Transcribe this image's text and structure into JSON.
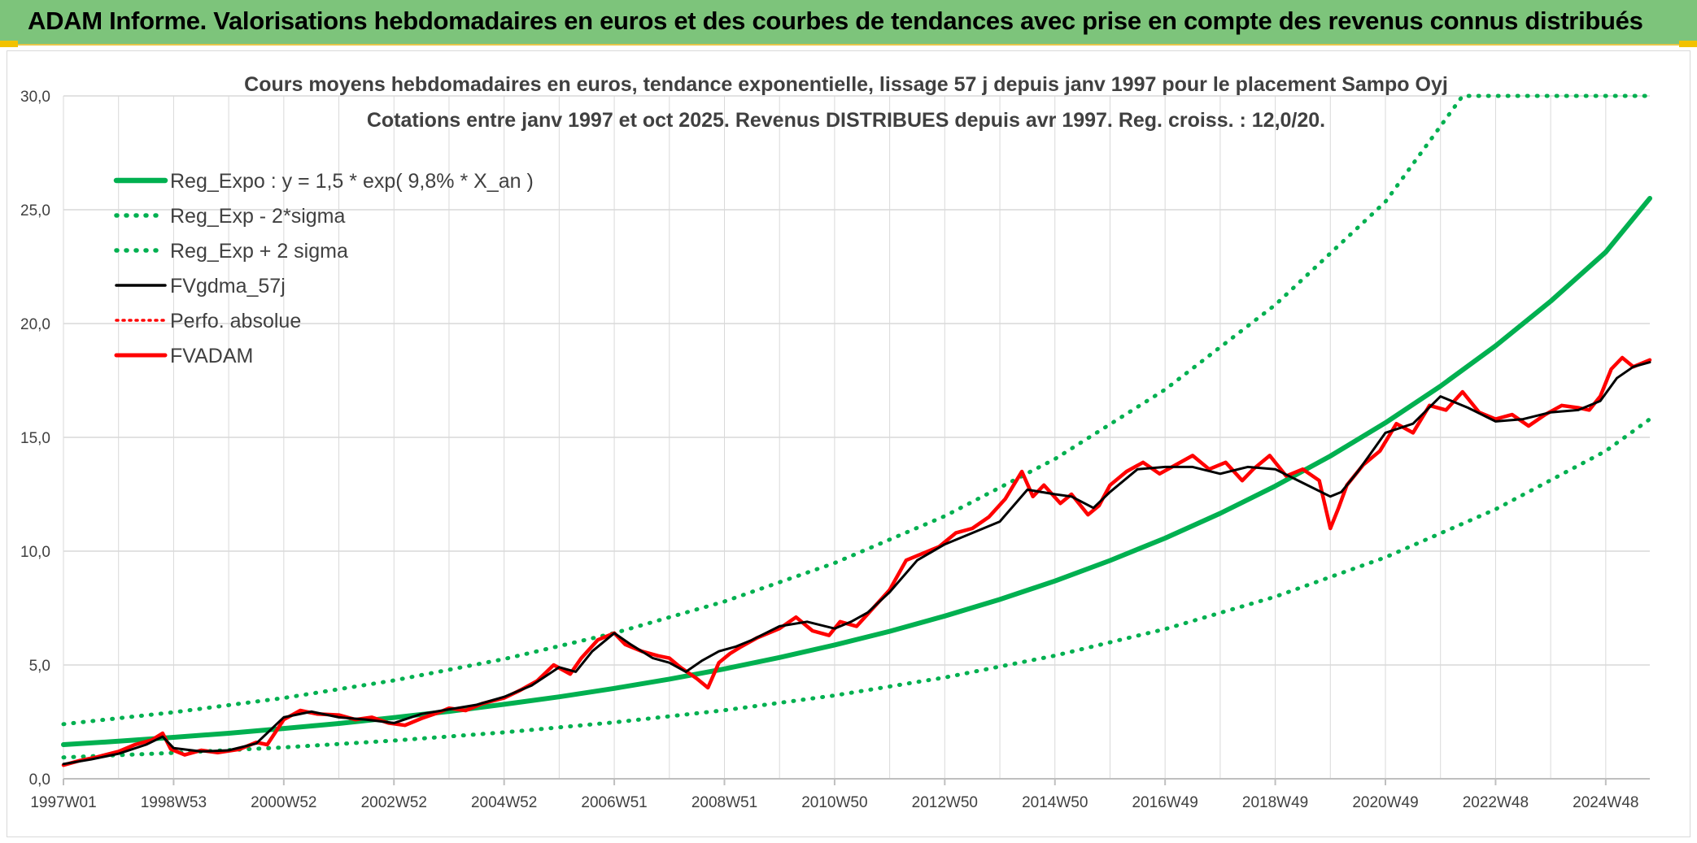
{
  "banner": {
    "title": "ADAM Informe. Valorisations hebdomadaires en euros et des courbes de tendances avec prise en compte des revenus connus distribués"
  },
  "colors": {
    "banner_bg": "#7dc47b",
    "trend_green": "#00b050",
    "price_red": "#ff0000",
    "smooth_black": "#000000",
    "grid": "#d9d9d9"
  },
  "chart_data": {
    "type": "line",
    "title_lines": [
      "Cours moyens hebdomadaires en euros, tendance exponentielle, lissage 57 j depuis janv 1997 pour le placement Sampo Oyj",
      "Cotations entre janv 1997 et oct 2025. Revenus DISTRIBUES depuis avr 1997. Reg. croiss. : 12,0/20."
    ],
    "xlabel": "",
    "ylabel": "",
    "ylim": [
      0,
      30
    ],
    "xlim": [
      1997.0,
      2025.8
    ],
    "y_ticks": [
      "0,0",
      "5,0",
      "10,0",
      "15,0",
      "20,0",
      "25,0",
      "30,0"
    ],
    "y_tick_values": [
      0,
      5,
      10,
      15,
      20,
      25,
      30
    ],
    "x_tick_labels": [
      "1997W01",
      "1998W53",
      "2000W52",
      "2002W52",
      "2004W52",
      "2006W51",
      "2008W51",
      "2010W50",
      "2012W50",
      "2014W50",
      "2016W49",
      "2018W49",
      "2020W49",
      "2022W48",
      "2024W48"
    ],
    "x_tick_values": [
      1997.0,
      1999.0,
      2001.0,
      2003.0,
      2005.0,
      2007.0,
      2009.0,
      2011.0,
      2013.0,
      2015.0,
      2017.0,
      2019.0,
      2021.0,
      2023.0,
      2025.0
    ],
    "grid": true,
    "legend_position": "top-left",
    "series": [
      {
        "name": "Reg_Expo : y = 1,5 * exp( 9,8% *  X_an )",
        "style": "solid-green-thick",
        "x": [
          1997.0,
          1998.0,
          1999.0,
          2000.0,
          2001.0,
          2002.0,
          2003.0,
          2004.0,
          2005.0,
          2006.0,
          2007.0,
          2008.0,
          2009.0,
          2010.0,
          2011.0,
          2012.0,
          2013.0,
          2014.0,
          2015.0,
          2016.0,
          2017.0,
          2018.0,
          2019.0,
          2020.0,
          2021.0,
          2022.0,
          2023.0,
          2024.0,
          2025.0,
          2025.8
        ],
        "values": [
          1.5,
          1.65,
          1.82,
          2.0,
          2.21,
          2.43,
          2.69,
          2.96,
          3.27,
          3.6,
          3.97,
          4.38,
          4.83,
          5.33,
          5.88,
          6.48,
          7.15,
          7.88,
          8.69,
          9.59,
          10.57,
          11.66,
          12.86,
          14.18,
          15.64,
          17.25,
          19.02,
          20.98,
          23.14,
          25.5
        ]
      },
      {
        "name": "Reg_Exp - 2*sigma",
        "style": "dotted-green",
        "x": [
          1997.0,
          1999.0,
          2001.0,
          2003.0,
          2005.0,
          2007.0,
          2009.0,
          2011.0,
          2013.0,
          2015.0,
          2017.0,
          2019.0,
          2021.0,
          2023.0,
          2025.0,
          2025.8
        ],
        "values": [
          0.94,
          1.14,
          1.38,
          1.68,
          2.04,
          2.48,
          3.01,
          3.66,
          4.45,
          5.41,
          6.58,
          8.0,
          9.73,
          11.84,
          14.4,
          15.8
        ]
      },
      {
        "name": "Reg_Exp + 2 sigma",
        "style": "dotted-green",
        "x": [
          1997.0,
          1999.0,
          2001.0,
          2003.0,
          2005.0,
          2007.0,
          2009.0,
          2011.0,
          2013.0,
          2015.0,
          2017.0,
          2019.0,
          2021.0,
          2022.4,
          2023.0,
          2025.8
        ],
        "values": [
          2.4,
          2.92,
          3.55,
          4.32,
          5.26,
          6.4,
          7.79,
          9.48,
          11.54,
          14.05,
          17.1,
          20.82,
          25.35,
          30.0,
          30.0,
          30.0
        ]
      },
      {
        "name": "FVgdma_57j",
        "style": "solid-black",
        "x": [
          1997.0,
          1997.5,
          1998.0,
          1998.5,
          1998.8,
          1999.0,
          1999.5,
          2000.0,
          2000.5,
          2001.0,
          2001.5,
          2002.0,
          2002.5,
          2003.0,
          2003.5,
          2004.0,
          2004.5,
          2005.0,
          2005.5,
          2006.0,
          2006.3,
          2006.6,
          2007.0,
          2007.3,
          2007.7,
          2008.0,
          2008.3,
          2008.6,
          2008.9,
          2009.2,
          2009.5,
          2010.0,
          2010.5,
          2011.0,
          2011.3,
          2011.6,
          2012.0,
          2012.5,
          2013.0,
          2013.5,
          2014.0,
          2014.5,
          2015.0,
          2015.3,
          2015.7,
          2016.0,
          2016.5,
          2017.0,
          2017.5,
          2018.0,
          2018.5,
          2019.0,
          2019.5,
          2020.0,
          2020.2,
          2020.5,
          2021.0,
          2021.5,
          2022.0,
          2022.5,
          2023.0,
          2023.5,
          2024.0,
          2024.5,
          2024.9,
          2025.2,
          2025.5,
          2025.8
        ],
        "values": [
          0.65,
          0.85,
          1.1,
          1.5,
          1.85,
          1.35,
          1.2,
          1.25,
          1.55,
          2.7,
          2.95,
          2.7,
          2.6,
          2.45,
          2.85,
          3.05,
          3.25,
          3.6,
          4.1,
          4.9,
          4.7,
          5.6,
          6.4,
          5.9,
          5.3,
          5.1,
          4.7,
          5.2,
          5.6,
          5.8,
          6.1,
          6.7,
          6.9,
          6.6,
          6.9,
          7.3,
          8.2,
          9.6,
          10.3,
          10.8,
          11.3,
          12.7,
          12.5,
          12.4,
          11.9,
          12.6,
          13.6,
          13.7,
          13.7,
          13.4,
          13.7,
          13.6,
          13.0,
          12.4,
          12.6,
          13.5,
          15.2,
          15.6,
          16.8,
          16.3,
          15.7,
          15.8,
          16.1,
          16.2,
          16.6,
          17.6,
          18.1,
          18.3
        ]
      },
      {
        "name": "Perfo. absolue",
        "style": "dotted-red",
        "x": [],
        "values": []
      },
      {
        "name": "FVADAM",
        "style": "solid-red-thick",
        "x": [
          1997.0,
          1997.3,
          1997.6,
          1998.0,
          1998.3,
          1998.6,
          1998.8,
          1998.95,
          1999.2,
          1999.5,
          1999.8,
          2000.2,
          2000.5,
          2000.7,
          2001.0,
          2001.3,
          2001.6,
          2002.0,
          2002.3,
          2002.6,
          2002.9,
          2003.2,
          2003.5,
          2003.8,
          2004.0,
          2004.3,
          2004.6,
          2005.0,
          2005.3,
          2005.6,
          2005.9,
          2006.2,
          2006.4,
          2006.7,
          2007.0,
          2007.2,
          2007.5,
          2007.8,
          2008.0,
          2008.2,
          2008.5,
          2008.7,
          2008.9,
          2009.1,
          2009.3,
          2009.6,
          2010.0,
          2010.3,
          2010.6,
          2010.9,
          2011.1,
          2011.4,
          2011.7,
          2012.0,
          2012.3,
          2012.6,
          2012.9,
          2013.2,
          2013.5,
          2013.8,
          2014.1,
          2014.4,
          2014.6,
          2014.8,
          2015.1,
          2015.3,
          2015.6,
          2015.8,
          2016.0,
          2016.3,
          2016.6,
          2016.9,
          2017.2,
          2017.5,
          2017.8,
          2018.1,
          2018.4,
          2018.6,
          2018.9,
          2019.2,
          2019.5,
          2019.8,
          2020.0,
          2020.15,
          2020.3,
          2020.6,
          2020.9,
          2021.2,
          2021.5,
          2021.8,
          2022.1,
          2022.4,
          2022.7,
          2023.0,
          2023.3,
          2023.6,
          2023.9,
          2024.2,
          2024.5,
          2024.7,
          2024.9,
          2025.1,
          2025.3,
          2025.5,
          2025.8
        ],
        "values": [
          0.6,
          0.8,
          0.95,
          1.2,
          1.5,
          1.7,
          2.0,
          1.3,
          1.05,
          1.25,
          1.15,
          1.3,
          1.6,
          1.5,
          2.6,
          3.0,
          2.85,
          2.8,
          2.6,
          2.7,
          2.45,
          2.35,
          2.65,
          2.9,
          3.1,
          3.0,
          3.3,
          3.55,
          3.9,
          4.3,
          5.0,
          4.6,
          5.3,
          6.1,
          6.4,
          5.9,
          5.6,
          5.4,
          5.3,
          4.9,
          4.4,
          4.0,
          5.1,
          5.5,
          5.8,
          6.2,
          6.6,
          7.1,
          6.5,
          6.3,
          6.9,
          6.7,
          7.5,
          8.3,
          9.6,
          9.9,
          10.2,
          10.8,
          11.0,
          11.5,
          12.3,
          13.5,
          12.4,
          12.9,
          12.1,
          12.5,
          11.6,
          12.0,
          12.9,
          13.5,
          13.9,
          13.4,
          13.8,
          14.2,
          13.6,
          13.9,
          13.1,
          13.6,
          14.2,
          13.3,
          13.6,
          13.1,
          11.0,
          11.9,
          12.9,
          13.8,
          14.4,
          15.6,
          15.2,
          16.4,
          16.2,
          17.0,
          16.1,
          15.8,
          16.0,
          15.5,
          16.0,
          16.4,
          16.3,
          16.2,
          16.8,
          18.0,
          18.5,
          18.1,
          18.4
        ]
      }
    ]
  }
}
